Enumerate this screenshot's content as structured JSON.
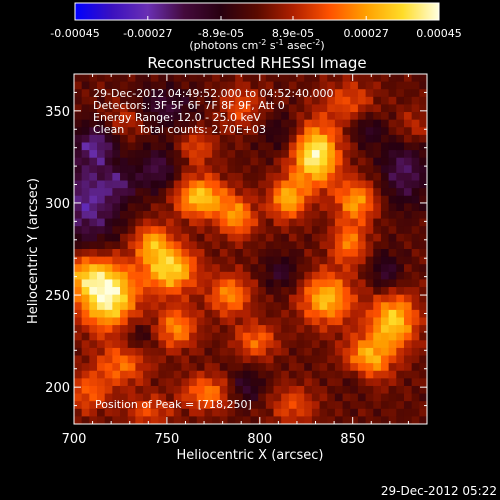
{
  "chart_data": {
    "type": "heatmap",
    "title": "Reconstructed RHESSI Image",
    "xlabel": "Heliocentric X (arcsec)",
    "ylabel": "Heliocentric Y (arcsec)",
    "xlim": [
      700,
      890
    ],
    "ylim": [
      180,
      370
    ],
    "x_ticks": [
      700,
      750,
      800,
      850
    ],
    "x_tick_labels": [
      "700",
      "750",
      "800",
      "850"
    ],
    "y_ticks": [
      200,
      250,
      300,
      350
    ],
    "y_tick_labels": [
      "200",
      "250",
      "300",
      "350"
    ],
    "colorbar": {
      "range": [
        -0.00045,
        0.00045
      ],
      "ticks": [
        -0.00045,
        -0.00027,
        -8.9e-05,
        8.9e-05,
        0.00027,
        0.00045
      ],
      "tick_labels": [
        "-0.00045",
        "-0.00027",
        "-8.9e-05",
        "8.9e-05",
        "0.00027",
        "0.00045"
      ],
      "unit_parts": {
        "open": "(photons cm",
        "exp1": "-2",
        "s": " s",
        "exp2": "-1",
        "asec": " asec",
        "exp3": "-2",
        "close": ")"
      },
      "colors": [
        "#0000ff",
        "#3a10c0",
        "#6a30b4",
        "#440a3c",
        "#280010",
        "#5a0a00",
        "#b02000",
        "#ff5200",
        "#ffa000",
        "#ffdc28",
        "#ffffe0"
      ]
    },
    "info_lines": [
      "29-Dec-2012 04:49:52.000 to 04:52:40.000",
      "Detectors: 3F 5F 6F 7F 8F 9F, Att 0",
      "Energy Range: 12.0 - 25.0 keV",
      "Clean    Total counts: 2.70E+03"
    ],
    "peak_label": "Position of Peak = [718,250]",
    "peak": {
      "x": 718,
      "y": 250
    },
    "sources": [
      {
        "x": 718,
        "y": 250,
        "sx": 11,
        "sy": 13,
        "amp": 1.0
      },
      {
        "x": 705,
        "y": 262,
        "sx": 8,
        "sy": 8,
        "amp": 0.45
      },
      {
        "x": 752,
        "y": 264,
        "sx": 10,
        "sy": 9,
        "amp": 0.8
      },
      {
        "x": 742,
        "y": 279,
        "sx": 7,
        "sy": 7,
        "amp": 0.55
      },
      {
        "x": 768,
        "y": 303,
        "sx": 10,
        "sy": 8,
        "amp": 0.75
      },
      {
        "x": 788,
        "y": 292,
        "sx": 7,
        "sy": 8,
        "amp": 0.55
      },
      {
        "x": 830,
        "y": 326,
        "sx": 9,
        "sy": 12,
        "amp": 0.95
      },
      {
        "x": 815,
        "y": 302,
        "sx": 7,
        "sy": 8,
        "amp": 0.65
      },
      {
        "x": 852,
        "y": 301,
        "sx": 8,
        "sy": 8,
        "amp": 0.6
      },
      {
        "x": 848,
        "y": 278,
        "sx": 7,
        "sy": 8,
        "amp": 0.5
      },
      {
        "x": 836,
        "y": 248,
        "sx": 10,
        "sy": 10,
        "amp": 0.7
      },
      {
        "x": 872,
        "y": 236,
        "sx": 9,
        "sy": 11,
        "amp": 0.75
      },
      {
        "x": 858,
        "y": 215,
        "sx": 9,
        "sy": 9,
        "amp": 0.65
      },
      {
        "x": 784,
        "y": 250,
        "sx": 8,
        "sy": 8,
        "amp": 0.55
      },
      {
        "x": 798,
        "y": 225,
        "sx": 8,
        "sy": 7,
        "amp": 0.45
      },
      {
        "x": 755,
        "y": 232,
        "sx": 8,
        "sy": 8,
        "amp": 0.55
      },
      {
        "x": 726,
        "y": 212,
        "sx": 10,
        "sy": 8,
        "amp": 0.45
      },
      {
        "x": 772,
        "y": 197,
        "sx": 10,
        "sy": 7,
        "amp": 0.5
      },
      {
        "x": 708,
        "y": 197,
        "sx": 8,
        "sy": 8,
        "amp": 0.4
      },
      {
        "x": 740,
        "y": 187,
        "sx": 9,
        "sy": 6,
        "amp": 0.35
      },
      {
        "x": 818,
        "y": 190,
        "sx": 9,
        "sy": 8,
        "amp": 0.35
      },
      {
        "x": 728,
        "y": 345,
        "sx": 8,
        "sy": 7,
        "amp": 0.3
      },
      {
        "x": 790,
        "y": 352,
        "sx": 8,
        "sy": 8,
        "amp": 0.35
      },
      {
        "x": 848,
        "y": 355,
        "sx": 10,
        "sy": 8,
        "amp": 0.35
      },
      {
        "x": 766,
        "y": 330,
        "sx": 7,
        "sy": 7,
        "amp": 0.35
      },
      {
        "x": 882,
        "y": 340,
        "sx": 7,
        "sy": 8,
        "amp": 0.3
      },
      {
        "x": 725,
        "y": 310,
        "sx": 6,
        "sy": 6,
        "amp": -0.3
      },
      {
        "x": 708,
        "y": 300,
        "sx": 12,
        "sy": 18,
        "amp": -0.55
      },
      {
        "x": 712,
        "y": 332,
        "sx": 8,
        "sy": 8,
        "amp": -0.45
      },
      {
        "x": 745,
        "y": 318,
        "sx": 8,
        "sy": 9,
        "amp": -0.4
      },
      {
        "x": 748,
        "y": 352,
        "sx": 12,
        "sy": 8,
        "amp": -0.35
      },
      {
        "x": 812,
        "y": 338,
        "sx": 8,
        "sy": 8,
        "amp": -0.25
      },
      {
        "x": 878,
        "y": 318,
        "sx": 9,
        "sy": 14,
        "amp": -0.45
      },
      {
        "x": 868,
        "y": 262,
        "sx": 6,
        "sy": 8,
        "amp": -0.35
      },
      {
        "x": 852,
        "y": 205,
        "sx": 6,
        "sy": 6,
        "amp": -0.25
      },
      {
        "x": 792,
        "y": 200,
        "sx": 7,
        "sy": 7,
        "amp": -0.35
      },
      {
        "x": 735,
        "y": 228,
        "sx": 7,
        "sy": 6,
        "amp": -0.25
      },
      {
        "x": 812,
        "y": 262,
        "sx": 7,
        "sy": 7,
        "amp": -0.3
      },
      {
        "x": 858,
        "y": 340,
        "sx": 6,
        "sy": 6,
        "amp": -0.3
      }
    ]
  },
  "footer": {
    "timestamp": "29-Dec-2012 05:22"
  }
}
